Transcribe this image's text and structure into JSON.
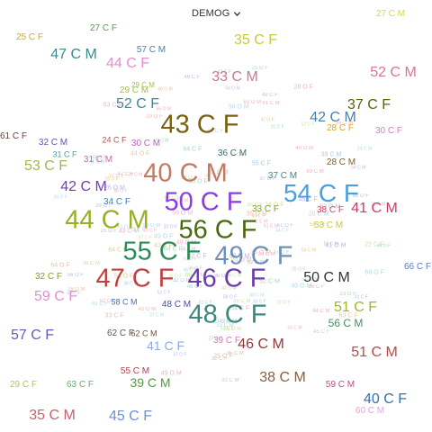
{
  "dropdown": {
    "label": "DEMOG",
    "icon": "chevron-down-icon"
  },
  "chart_data": {
    "type": "wordcloud",
    "words": [
      {
        "text": "54 C F",
        "color": "#4aa0d8"
      },
      {
        "text": "50 C F",
        "color": "#8a3ee0"
      },
      {
        "text": "44 C M",
        "color": "#9aaf28"
      },
      {
        "text": "56 C F",
        "color": "#4a6a10"
      },
      {
        "text": "49 C F",
        "color": "#7090b8"
      },
      {
        "text": "46 C F",
        "color": "#6a3ea8"
      },
      {
        "text": "47 C F",
        "color": "#c04040"
      },
      {
        "text": "48 C F",
        "color": "#3a8a7a"
      },
      {
        "text": "43 C F",
        "color": "#7a6010"
      },
      {
        "text": "40 C M",
        "color": "#c87860"
      },
      {
        "text": "55 C F",
        "color": "#2e8a5a"
      },
      {
        "text": "50 C M",
        "color": "#333333"
      },
      {
        "text": "41 C M",
        "color": "#c84060"
      },
      {
        "text": "38 C M",
        "color": "#8a6040"
      },
      {
        "text": "46 C M",
        "color": "#8a3a3a"
      },
      {
        "text": "35 C F",
        "color": "#c8c840"
      },
      {
        "text": "47 C M",
        "color": "#3a8a8a"
      },
      {
        "text": "44 C F",
        "color": "#e090d0"
      },
      {
        "text": "33 C M",
        "color": "#c87890"
      },
      {
        "text": "52 C M",
        "color": "#d87890"
      },
      {
        "text": "37 C F",
        "color": "#5a6010"
      },
      {
        "text": "42 C M",
        "color": "#4a80a8"
      },
      {
        "text": "52 C F",
        "color": "#3a8a9a"
      },
      {
        "text": "53 C F",
        "color": "#a0b850"
      },
      {
        "text": "42 C M",
        "color": "#7040b8"
      },
      {
        "text": "59 C F",
        "color": "#e090d0"
      },
      {
        "text": "57 C F",
        "color": "#6a5ab8"
      },
      {
        "text": "51 C F",
        "color": "#a0b828"
      },
      {
        "text": "56 C M",
        "color": "#4a8a6a"
      },
      {
        "text": "51 C M",
        "color": "#b84a4a"
      },
      {
        "text": "40 C F",
        "color": "#3a70a8"
      },
      {
        "text": "35 C M",
        "color": "#c86070"
      },
      {
        "text": "45 C F",
        "color": "#6a90d8"
      },
      {
        "text": "39 C M",
        "color": "#4aa040"
      },
      {
        "text": "41 C F",
        "color": "#90a8e0"
      },
      {
        "text": "29 C M",
        "color": "#a0c050"
      },
      {
        "text": "27 C M",
        "color": "#d8d840"
      },
      {
        "text": "25 C F",
        "color": "#d8a820"
      },
      {
        "text": "27 C F",
        "color": "#50a050"
      },
      {
        "text": "57 C M",
        "color": "#4a80a8"
      },
      {
        "text": "61 C F",
        "color": "#704040"
      },
      {
        "text": "32 C M",
        "color": "#6050b8"
      },
      {
        "text": "32 C F",
        "color": "#80a020"
      },
      {
        "text": "29 C F",
        "color": "#b0c860"
      },
      {
        "text": "63 C F",
        "color": "#60b070"
      },
      {
        "text": "66 C F",
        "color": "#5080c8"
      },
      {
        "text": "60 C M",
        "color": "#e8a0e0"
      },
      {
        "text": "59 C M",
        "color": "#c04a80"
      },
      {
        "text": "55 C M",
        "color": "#b04050"
      },
      {
        "text": "62 C F",
        "color": "#705050"
      },
      {
        "text": "30 C F",
        "color": "#d080c0"
      },
      {
        "text": "28 C F",
        "color": "#d8a820"
      },
      {
        "text": "33 C F",
        "color": "#80a030"
      },
      {
        "text": "31 C M",
        "color": "#d060b0"
      },
      {
        "text": "30 C M",
        "color": "#c060c0"
      },
      {
        "text": "36 C M",
        "color": "#3a6a6a"
      },
      {
        "text": "53 C M",
        "color": "#c8c840"
      },
      {
        "text": "38 C F",
        "color": "#e04060"
      },
      {
        "text": "37 C M",
        "color": "#508080"
      },
      {
        "text": "39 C F",
        "color": "#d080b0"
      },
      {
        "text": "34 C F",
        "color": "#4080c0"
      },
      {
        "text": "29 C M",
        "color": "#a0c050"
      },
      {
        "text": "28 C M",
        "color": "#7a6030"
      },
      {
        "text": "24 C F",
        "color": "#b05050"
      },
      {
        "text": "48 C M",
        "color": "#4a4aa8"
      },
      {
        "text": "58 C M",
        "color": "#4a70a8"
      },
      {
        "text": "62 C M",
        "color": "#705030"
      },
      {
        "text": "31 C F",
        "color": "#4aa0a0"
      }
    ]
  }
}
